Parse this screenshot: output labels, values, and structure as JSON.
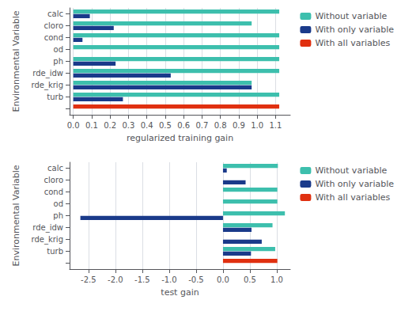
{
  "chart_data": [
    {
      "type": "bar",
      "orientation": "horizontal",
      "categories": [
        "calc",
        "cloro",
        "cond",
        "od",
        "ph",
        "rde_idw",
        "rde_krig",
        "turb",
        null
      ],
      "series": [
        {
          "name": "Without variable",
          "color": "#3dbfad",
          "values": [
            1.12,
            0.97,
            1.12,
            1.12,
            1.12,
            1.12,
            0.97,
            1.12,
            null
          ]
        },
        {
          "name": "With only variable",
          "color": "#1a3a8a",
          "values": [
            0.09,
            0.22,
            0.05,
            0.0,
            0.23,
            0.53,
            0.97,
            0.27,
            null
          ]
        },
        {
          "name": "With all variables",
          "color": "#e03010",
          "values": [
            null,
            null,
            null,
            null,
            null,
            null,
            null,
            null,
            1.12
          ]
        }
      ],
      "xlabel": "regularized training gain",
      "ylabel": "Environmental Variable",
      "xlim": [
        -0.02,
        1.18
      ],
      "xticks": [
        {
          "value": 0,
          "label": "0.0"
        },
        0.1,
        0.2,
        0.3,
        0.4,
        0.5,
        0.6,
        0.7,
        0.8,
        0.9,
        {
          "value": 1,
          "label": "1.0"
        },
        1.1
      ],
      "grid": true,
      "legend": "right"
    },
    {
      "type": "bar",
      "orientation": "horizontal",
      "categories": [
        "calc",
        "cloro",
        "cond",
        "od",
        "ph",
        "rde_idw",
        "rde_krig",
        "turb",
        null
      ],
      "series": [
        {
          "name": "Without variable",
          "color": "#3dbfad",
          "values": [
            1.02,
            0.0,
            1.01,
            1.01,
            1.15,
            0.92,
            0.0,
            0.97,
            null
          ]
        },
        {
          "name": "With only variable",
          "color": "#1a3a8a",
          "values": [
            0.07,
            0.42,
            0.0,
            0.0,
            -2.65,
            0.53,
            0.72,
            0.52,
            null
          ]
        },
        {
          "name": "With all variables",
          "color": "#e03010",
          "values": [
            null,
            null,
            null,
            null,
            null,
            null,
            null,
            null,
            1.01
          ]
        }
      ],
      "xlabel": "test gain",
      "ylabel": "Environmental Variable",
      "xlim": [
        -2.85,
        1.25
      ],
      "xticks": [
        -2.5,
        {
          "value": -2,
          "label": "-2.0"
        },
        -1.5,
        {
          "value": -1,
          "label": "-1.0"
        },
        -0.5,
        {
          "value": 0,
          "label": "0.0"
        },
        0.5,
        {
          "value": 1,
          "label": "1.0"
        }
      ],
      "grid": true,
      "legend": "right"
    }
  ]
}
